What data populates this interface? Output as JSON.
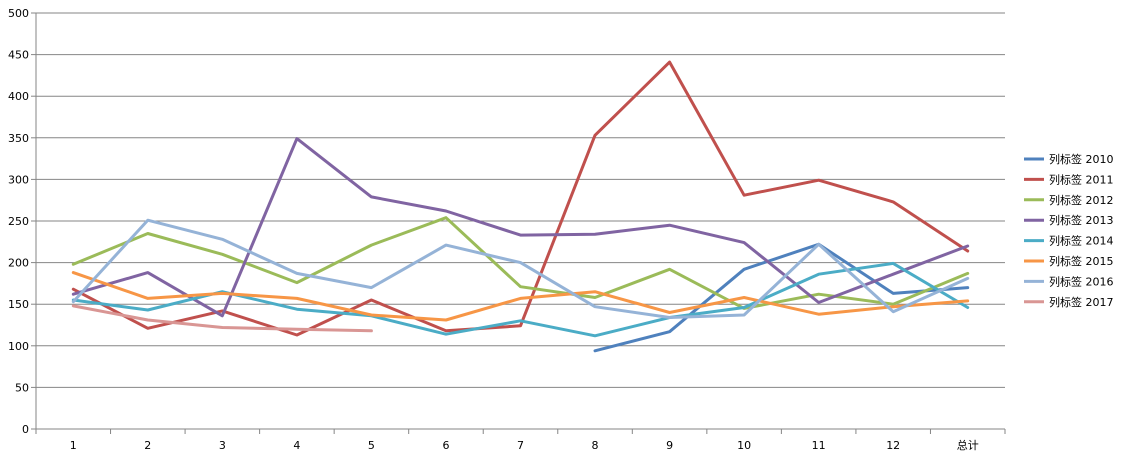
{
  "chart_data": {
    "type": "line",
    "title": "",
    "xlabel": "",
    "ylabel": "",
    "categories": [
      "1",
      "2",
      "3",
      "4",
      "5",
      "6",
      "7",
      "8",
      "9",
      "10",
      "11",
      "12",
      "总计"
    ],
    "ylim": [
      0,
      500
    ],
    "yticks": [
      0,
      50,
      100,
      150,
      200,
      250,
      300,
      350,
      400,
      450,
      500
    ],
    "grid": true,
    "legend_position": "right",
    "series": [
      {
        "name": "列标签 2010",
        "color": "#4f81bd",
        "values": [
          null,
          null,
          null,
          null,
          null,
          null,
          null,
          94,
          117,
          192,
          222,
          163,
          170
        ]
      },
      {
        "name": "列标签 2011",
        "color": "#c0504d",
        "values": [
          168,
          121,
          142,
          113,
          155,
          118,
          124,
          353,
          441,
          281,
          299,
          273,
          214
        ]
      },
      {
        "name": "列标签 2012",
        "color": "#9bbb59",
        "values": [
          198,
          235,
          210,
          176,
          221,
          254,
          171,
          158,
          192,
          145,
          162,
          150,
          187
        ]
      },
      {
        "name": "列标签 2013",
        "color": "#8064a2",
        "values": [
          162,
          188,
          136,
          349,
          279,
          262,
          233,
          234,
          245,
          224,
          152,
          186,
          220
        ]
      },
      {
        "name": "列标签 2014",
        "color": "#4bacc6",
        "values": [
          155,
          143,
          165,
          144,
          136,
          114,
          130,
          112,
          134,
          146,
          186,
          199,
          146
        ]
      },
      {
        "name": "列标签 2015",
        "color": "#f79646",
        "values": [
          188,
          157,
          163,
          157,
          137,
          131,
          157,
          165,
          140,
          158,
          138,
          147,
          154
        ]
      },
      {
        "name": "列标签 2016",
        "color": "#95b3d7",
        "values": [
          153,
          251,
          228,
          187,
          170,
          221,
          200,
          147,
          134,
          137,
          222,
          141,
          181
        ]
      },
      {
        "name": "列标签 2017",
        "color": "#d99694",
        "values": [
          148,
          131,
          122,
          120,
          118,
          null,
          null,
          null,
          null,
          null,
          null,
          null,
          null
        ]
      }
    ]
  }
}
